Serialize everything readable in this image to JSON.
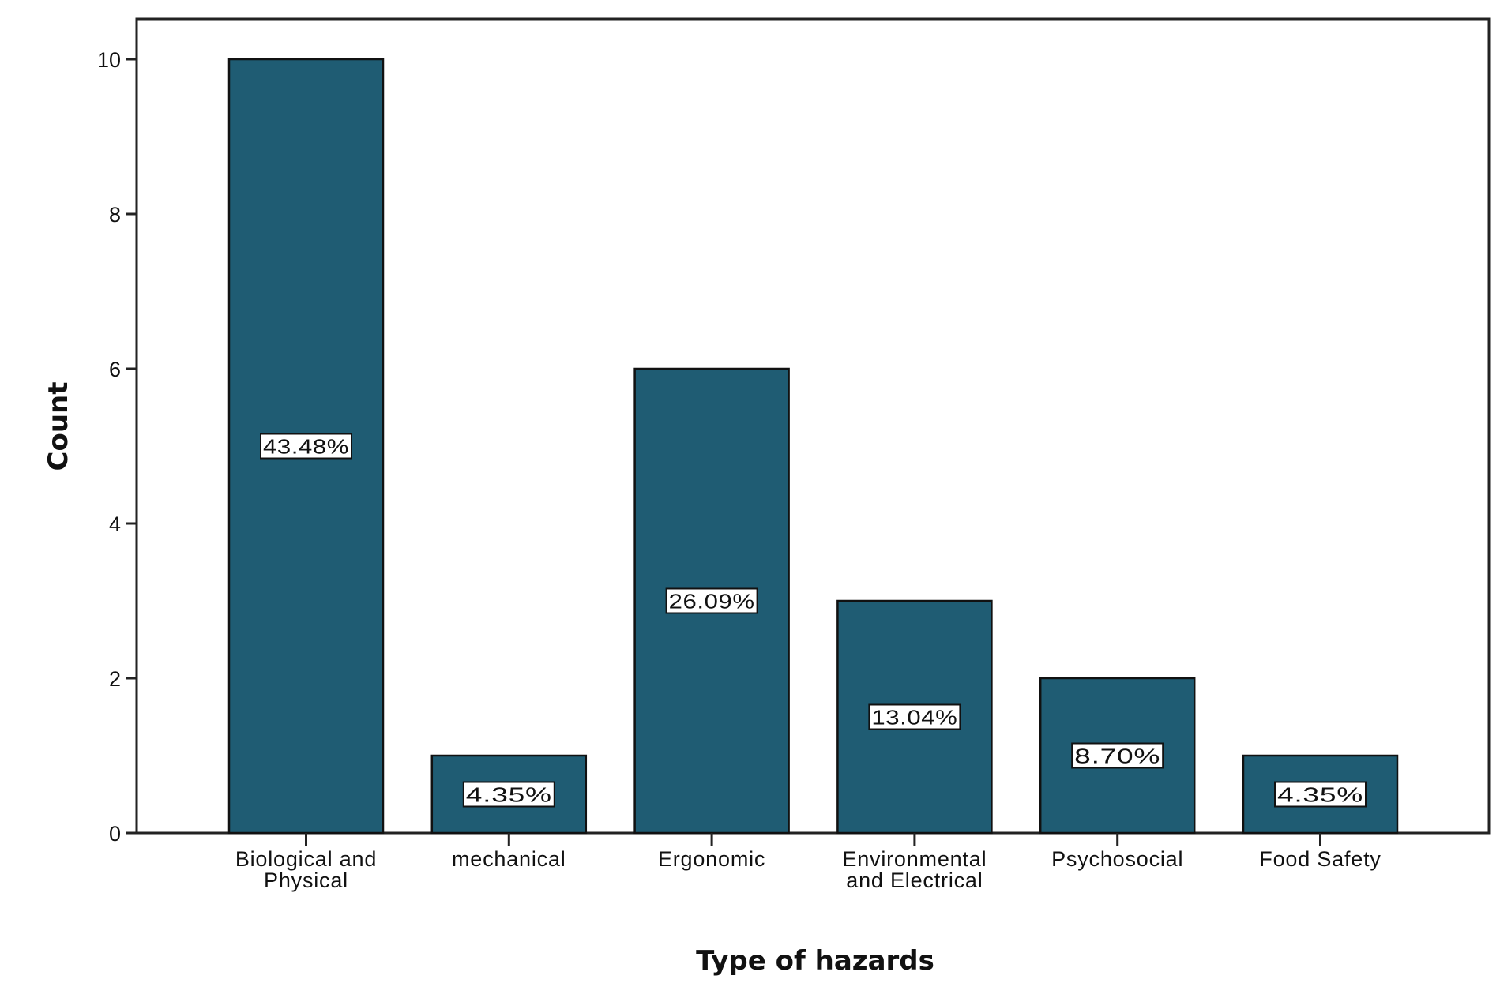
{
  "chart_data": {
    "type": "bar",
    "title": "",
    "xlabel": "Type of hazards",
    "ylabel": "Count",
    "categories": [
      "Biological and Physical",
      "mechanical",
      "Ergonomic",
      "Environmental and Electrical",
      "Psychosocial",
      "Food Safety"
    ],
    "category_label_lines": [
      [
        "Biological and",
        "Physical"
      ],
      [
        "mechanical"
      ],
      [
        "Ergonomic"
      ],
      [
        "Environmental",
        "and Electrical"
      ],
      [
        "Psychosocial"
      ],
      [
        "Food Safety"
      ]
    ],
    "values": [
      10,
      1,
      6,
      3,
      2,
      1
    ],
    "percent_labels": [
      "43.48%",
      "4.35%",
      "26.09%",
      "13.04%",
      "8.70%",
      "4.35%"
    ],
    "ylim": [
      0,
      10
    ],
    "yticks": [
      0,
      2,
      4,
      6,
      8,
      10
    ],
    "grid": false,
    "legend": null,
    "bar_color": "#1f5c73",
    "bar_edge_color": "#111111"
  }
}
